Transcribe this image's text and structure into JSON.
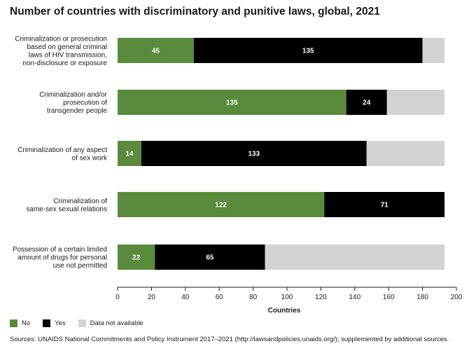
{
  "chart_data": {
    "type": "bar",
    "orientation": "horizontal",
    "stacked": true,
    "title": "Number of countries with discriminatory and punitive laws, global, 2021",
    "xlabel": "Countries",
    "ylabel": "",
    "xlim": [
      0,
      200
    ],
    "xticks": [
      0,
      20,
      40,
      60,
      80,
      100,
      120,
      140,
      160,
      180,
      200
    ],
    "grid": false,
    "legend_position": "bottom-left",
    "categories": [
      [
        "Criminalization or prosecution",
        "based on general criminal",
        "laws of HIV transmission,",
        "non-disclosure or exposure"
      ],
      [
        "Criminalization and/or",
        "prosecution of",
        "transgender people"
      ],
      [
        "Criminalization of any aspect",
        "of sex work"
      ],
      [
        "Criminalization of",
        "same-sex sexual relations"
      ],
      [
        "Possession of a certain limited",
        "amount of drugs for personal",
        "use not permitted"
      ]
    ],
    "series": [
      {
        "name": "No",
        "color": "#5a8a3c",
        "values": [
          45,
          135,
          14,
          122,
          22
        ],
        "labels": [
          "45",
          "135",
          "14",
          "122",
          "22"
        ]
      },
      {
        "name": "Yes",
        "color": "#000000",
        "values": [
          135,
          24,
          133,
          71,
          65
        ],
        "labels": [
          "135",
          "24",
          "133",
          "71",
          "65"
        ]
      },
      {
        "name": "Data not available",
        "color": "#d3d3d3",
        "values": [
          13,
          34,
          46,
          0,
          106
        ],
        "labels": []
      }
    ]
  },
  "source": "Sources: UNAIDS National Commitments and Policy Instrument 2017–2021 (http://lawsandpolicies.unaids.org/); supplemented by additional sources."
}
